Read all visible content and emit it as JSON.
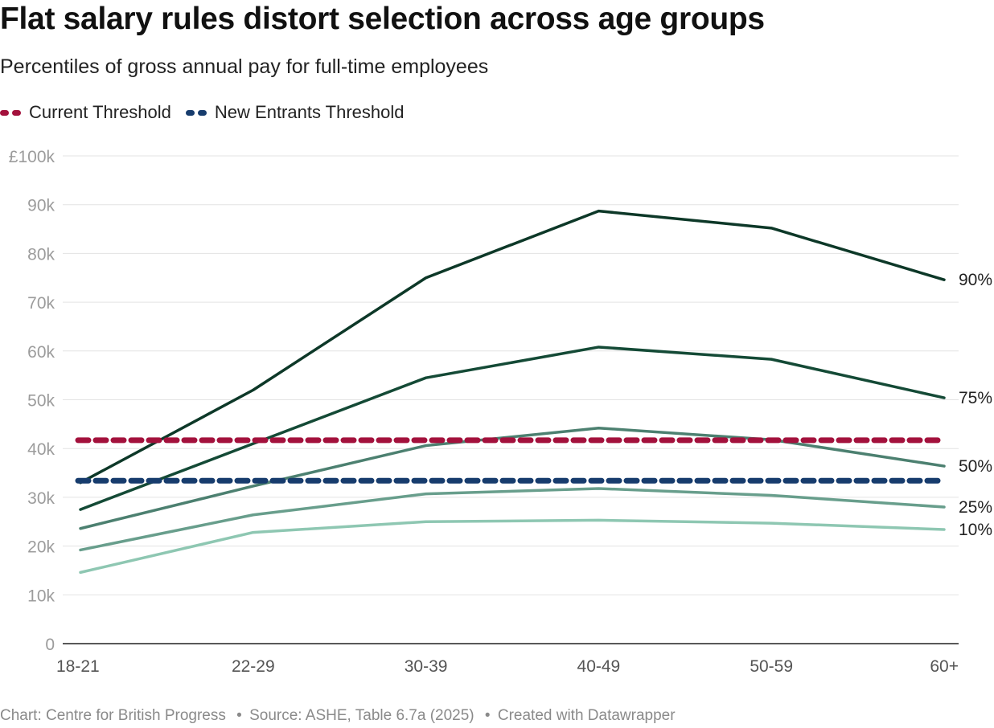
{
  "title": "Flat salary rules distort selection across age groups",
  "subtitle": "Percentiles of gross annual pay for full-time employees",
  "legend": [
    {
      "label": "Current Threshold",
      "color": "#a3113c"
    },
    {
      "label": "New Entrants Threshold",
      "color": "#173c6d"
    }
  ],
  "footer": {
    "chart_credit": "Chart: Centre for British Progress",
    "source": "Source: ASHE, Table 6.7a (2025)",
    "created_with": "Created with Datawrapper",
    "separator": "•"
  },
  "chart_data": {
    "type": "line",
    "title": "Flat salary rules distort selection across age groups",
    "subtitle": "Percentiles of gross annual pay for full-time employees",
    "xlabel": "",
    "ylabel": "",
    "categories": [
      "18-21",
      "22-29",
      "30-39",
      "40-49",
      "50-59",
      "60+"
    ],
    "ylim": [
      0,
      100000
    ],
    "yticks": [
      0,
      10000,
      20000,
      30000,
      40000,
      50000,
      60000,
      70000,
      80000,
      90000,
      100000
    ],
    "ytick_labels": [
      "0",
      "10k",
      "20k",
      "30k",
      "40k",
      "50k",
      "60k",
      "70k",
      "80k",
      "90k",
      "£100k"
    ],
    "grid": true,
    "series": [
      {
        "name": "90%",
        "color": "#0d3828",
        "values": [
          33000,
          52000,
          75000,
          88700,
          85200,
          74600
        ]
      },
      {
        "name": "75%",
        "color": "#144a36",
        "values": [
          27500,
          41000,
          54500,
          60800,
          58300,
          50400
        ]
      },
      {
        "name": "50%",
        "color": "#4c8070",
        "values": [
          23600,
          32300,
          40600,
          44200,
          41800,
          36400
        ]
      },
      {
        "name": "25%",
        "color": "#689e8c",
        "values": [
          19200,
          26400,
          30700,
          31800,
          30400,
          28000
        ]
      },
      {
        "name": "10%",
        "color": "#8ec7b2",
        "values": [
          14600,
          22800,
          25000,
          25300,
          24700,
          23400
        ]
      }
    ],
    "thresholds": [
      {
        "name": "Current Threshold",
        "value": 41700,
        "color": "#a3113c",
        "style": "dashed"
      },
      {
        "name": "New Entrants Threshold",
        "value": 33400,
        "color": "#173c6d",
        "style": "dashed"
      }
    ]
  }
}
